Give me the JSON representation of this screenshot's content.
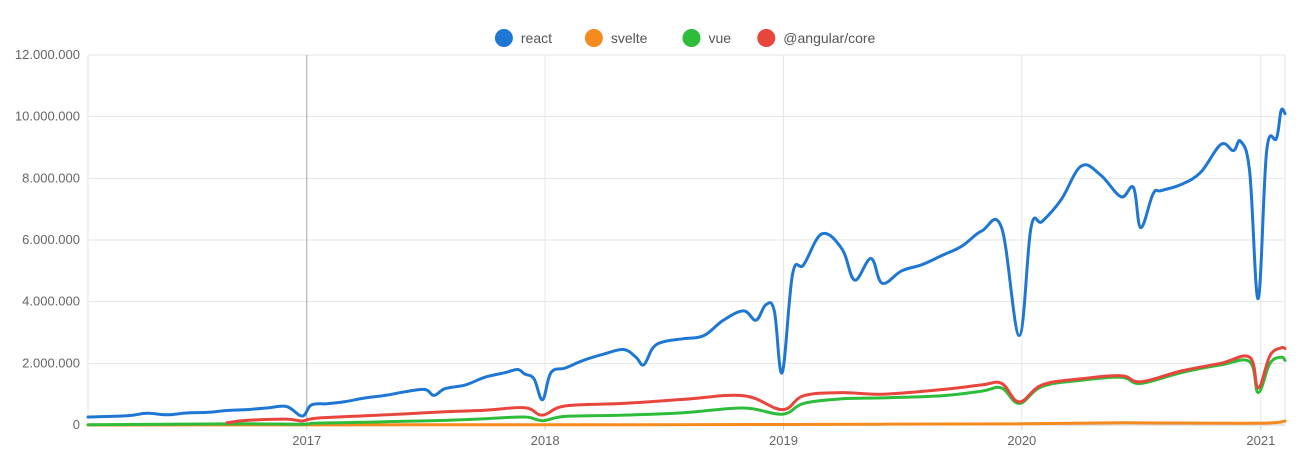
{
  "chart_data": {
    "type": "line",
    "title": "",
    "xlabel": "",
    "ylabel": "",
    "ylim": [
      0,
      12000000
    ],
    "xlim": [
      "2016-02-01",
      "2021-02-07"
    ],
    "y_ticks": [
      {
        "value": 0,
        "label": "0"
      },
      {
        "value": 2000000,
        "label": "2.000.000"
      },
      {
        "value": 4000000,
        "label": "4.000.000"
      },
      {
        "value": 6000000,
        "label": "6.000.000"
      },
      {
        "value": 8000000,
        "label": "8.000.000"
      },
      {
        "value": 10000000,
        "label": "10.000.000"
      },
      {
        "value": 12000000,
        "label": "12.000.000"
      }
    ],
    "x_ticks": [
      {
        "value": "2017-01-01",
        "label": "2017"
      },
      {
        "value": "2018-01-01",
        "label": "2018"
      },
      {
        "value": "2019-01-01",
        "label": "2019"
      },
      {
        "value": "2020-01-01",
        "label": "2020"
      },
      {
        "value": "2021-01-01",
        "label": "2021"
      }
    ],
    "grid": true,
    "hover_line_x": "2017-01-01",
    "legend_position": "top-center",
    "series": [
      {
        "name": "react",
        "color": "#1f77d4",
        "points": [
          [
            "2016-02-01",
            260000
          ],
          [
            "2016-04-01",
            300000
          ],
          [
            "2016-05-01",
            380000
          ],
          [
            "2016-06-01",
            330000
          ],
          [
            "2016-07-01",
            390000
          ],
          [
            "2016-08-01",
            410000
          ],
          [
            "2016-09-01",
            470000
          ],
          [
            "2016-10-01",
            500000
          ],
          [
            "2016-11-01",
            550000
          ],
          [
            "2016-12-01",
            600000
          ],
          [
            "2016-12-25",
            290000
          ],
          [
            "2017-01-08",
            650000
          ],
          [
            "2017-02-01",
            690000
          ],
          [
            "2017-03-01",
            760000
          ],
          [
            "2017-04-01",
            880000
          ],
          [
            "2017-05-01",
            960000
          ],
          [
            "2017-06-01",
            1080000
          ],
          [
            "2017-07-01",
            1150000
          ],
          [
            "2017-07-15",
            960000
          ],
          [
            "2017-08-01",
            1180000
          ],
          [
            "2017-09-01",
            1300000
          ],
          [
            "2017-10-01",
            1550000
          ],
          [
            "2017-11-01",
            1700000
          ],
          [
            "2017-11-20",
            1800000
          ],
          [
            "2017-12-01",
            1650000
          ],
          [
            "2017-12-15",
            1500000
          ],
          [
            "2017-12-28",
            820000
          ],
          [
            "2018-01-10",
            1700000
          ],
          [
            "2018-02-01",
            1850000
          ],
          [
            "2018-03-01",
            2100000
          ],
          [
            "2018-04-01",
            2300000
          ],
          [
            "2018-05-01",
            2450000
          ],
          [
            "2018-05-20",
            2200000
          ],
          [
            "2018-06-01",
            1950000
          ],
          [
            "2018-06-15",
            2500000
          ],
          [
            "2018-07-01",
            2700000
          ],
          [
            "2018-08-01",
            2800000
          ],
          [
            "2018-09-01",
            2900000
          ],
          [
            "2018-10-01",
            3400000
          ],
          [
            "2018-11-01",
            3700000
          ],
          [
            "2018-11-20",
            3400000
          ],
          [
            "2018-12-05",
            3900000
          ],
          [
            "2018-12-18",
            3700000
          ],
          [
            "2018-12-30",
            1700000
          ],
          [
            "2019-01-15",
            4900000
          ],
          [
            "2019-02-01",
            5200000
          ],
          [
            "2019-03-01",
            6200000
          ],
          [
            "2019-04-01",
            5700000
          ],
          [
            "2019-04-20",
            4700000
          ],
          [
            "2019-05-15",
            5400000
          ],
          [
            "2019-06-01",
            4600000
          ],
          [
            "2019-07-01",
            5000000
          ],
          [
            "2019-08-01",
            5200000
          ],
          [
            "2019-09-01",
            5500000
          ],
          [
            "2019-10-01",
            5800000
          ],
          [
            "2019-11-01",
            6300000
          ],
          [
            "2019-12-01",
            6400000
          ],
          [
            "2019-12-28",
            2900000
          ],
          [
            "2020-01-15",
            6400000
          ],
          [
            "2020-02-01",
            6600000
          ],
          [
            "2020-03-01",
            7300000
          ],
          [
            "2020-04-01",
            8400000
          ],
          [
            "2020-05-01",
            8100000
          ],
          [
            "2020-06-01",
            7400000
          ],
          [
            "2020-06-20",
            7700000
          ],
          [
            "2020-07-01",
            6400000
          ],
          [
            "2020-07-20",
            7500000
          ],
          [
            "2020-08-01",
            7600000
          ],
          [
            "2020-09-01",
            7800000
          ],
          [
            "2020-10-01",
            8200000
          ],
          [
            "2020-11-01",
            9100000
          ],
          [
            "2020-11-20",
            8900000
          ],
          [
            "2020-12-01",
            9200000
          ],
          [
            "2020-12-15",
            8200000
          ],
          [
            "2020-12-28",
            4100000
          ],
          [
            "2021-01-10",
            8900000
          ],
          [
            "2021-01-25",
            9300000
          ],
          [
            "2021-02-01",
            10200000
          ],
          [
            "2021-02-07",
            10100000
          ]
        ]
      },
      {
        "name": "svelte",
        "color": "#f58a1f",
        "points": [
          [
            "2016-02-01",
            1000
          ],
          [
            "2016-12-01",
            3000
          ],
          [
            "2017-06-01",
            5000
          ],
          [
            "2018-01-01",
            8000
          ],
          [
            "2018-06-01",
            10000
          ],
          [
            "2019-01-01",
            15000
          ],
          [
            "2019-06-01",
            25000
          ],
          [
            "2020-01-01",
            40000
          ],
          [
            "2020-06-01",
            70000
          ],
          [
            "2020-12-28",
            60000
          ],
          [
            "2021-02-07",
            130000
          ]
        ]
      },
      {
        "name": "vue",
        "color": "#2ebd3a",
        "points": [
          [
            "2016-02-01",
            10000
          ],
          [
            "2016-06-01",
            25000
          ],
          [
            "2016-10-01",
            40000
          ],
          [
            "2016-12-25",
            25000
          ],
          [
            "2017-01-15",
            60000
          ],
          [
            "2017-04-01",
            90000
          ],
          [
            "2017-06-01",
            120000
          ],
          [
            "2017-08-01",
            150000
          ],
          [
            "2017-10-01",
            200000
          ],
          [
            "2017-12-01",
            260000
          ],
          [
            "2017-12-28",
            140000
          ],
          [
            "2018-02-01",
            280000
          ],
          [
            "2018-05-01",
            320000
          ],
          [
            "2018-08-01",
            400000
          ],
          [
            "2018-11-01",
            550000
          ],
          [
            "2018-12-30",
            350000
          ],
          [
            "2019-02-01",
            700000
          ],
          [
            "2019-04-01",
            850000
          ],
          [
            "2019-06-01",
            880000
          ],
          [
            "2019-09-01",
            950000
          ],
          [
            "2019-11-01",
            1100000
          ],
          [
            "2019-12-01",
            1200000
          ],
          [
            "2019-12-28",
            700000
          ],
          [
            "2020-02-01",
            1250000
          ],
          [
            "2020-04-01",
            1450000
          ],
          [
            "2020-06-01",
            1550000
          ],
          [
            "2020-07-01",
            1350000
          ],
          [
            "2020-09-01",
            1700000
          ],
          [
            "2020-11-01",
            1950000
          ],
          [
            "2020-12-15",
            2050000
          ],
          [
            "2020-12-28",
            1050000
          ],
          [
            "2021-01-15",
            2000000
          ],
          [
            "2021-02-01",
            2200000
          ],
          [
            "2021-02-07",
            2100000
          ]
        ]
      },
      {
        "name": "@angular/core",
        "color": "#e8453c",
        "points": [
          [
            "2016-09-01",
            70000
          ],
          [
            "2016-10-01",
            150000
          ],
          [
            "2016-12-01",
            190000
          ],
          [
            "2016-12-25",
            130000
          ],
          [
            "2017-01-15",
            220000
          ],
          [
            "2017-04-01",
            300000
          ],
          [
            "2017-06-01",
            360000
          ],
          [
            "2017-08-01",
            430000
          ],
          [
            "2017-10-01",
            480000
          ],
          [
            "2017-12-01",
            560000
          ],
          [
            "2017-12-28",
            320000
          ],
          [
            "2018-02-01",
            620000
          ],
          [
            "2018-05-01",
            700000
          ],
          [
            "2018-08-01",
            830000
          ],
          [
            "2018-11-01",
            950000
          ],
          [
            "2018-12-30",
            500000
          ],
          [
            "2019-02-01",
            950000
          ],
          [
            "2019-04-01",
            1050000
          ],
          [
            "2019-06-01",
            1000000
          ],
          [
            "2019-09-01",
            1150000
          ],
          [
            "2019-11-01",
            1300000
          ],
          [
            "2019-12-01",
            1350000
          ],
          [
            "2019-12-28",
            750000
          ],
          [
            "2020-02-01",
            1300000
          ],
          [
            "2020-04-01",
            1500000
          ],
          [
            "2020-06-01",
            1600000
          ],
          [
            "2020-07-01",
            1400000
          ],
          [
            "2020-09-01",
            1750000
          ],
          [
            "2020-11-01",
            2000000
          ],
          [
            "2020-12-15",
            2200000
          ],
          [
            "2020-12-28",
            1200000
          ],
          [
            "2021-01-15",
            2250000
          ],
          [
            "2021-02-01",
            2500000
          ],
          [
            "2021-02-07",
            2480000
          ]
        ]
      }
    ]
  }
}
